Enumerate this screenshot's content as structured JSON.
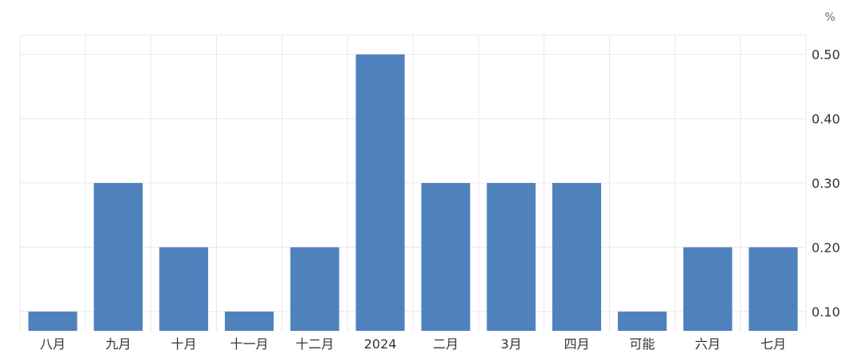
{
  "chart_data": {
    "type": "bar",
    "unit": "%",
    "categories": [
      "八月",
      "九月",
      "十月",
      "十一月",
      "十二月",
      "2024",
      "二月",
      "3月",
      "四月",
      "可能",
      "六月",
      "七月"
    ],
    "values": [
      0.1,
      0.3,
      0.2,
      0.1,
      0.2,
      0.5,
      0.3,
      0.3,
      0.3,
      0.1,
      0.2,
      0.2
    ],
    "y_ticks": [
      "0.10",
      "0.20",
      "0.30",
      "0.40",
      "0.50"
    ],
    "ylim": [
      0.07,
      0.53
    ],
    "y_axis_position": "right",
    "grid": true,
    "colors": {
      "bar": "#4f81bd",
      "grid": "#e8e8e8",
      "text": "#333333"
    }
  }
}
